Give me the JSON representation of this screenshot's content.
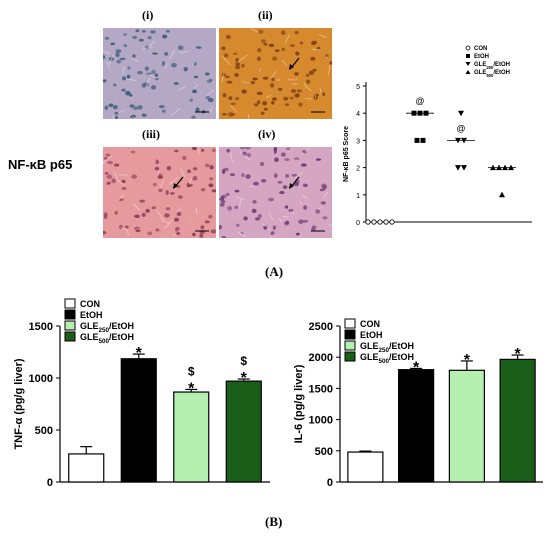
{
  "panel_a_label": "(A)",
  "panel_b_label": "(B)",
  "stain_label": "NF-κB  p65",
  "micrographs": [
    {
      "label": "(i)",
      "stain_color": "#b5a8c4",
      "nuclei_color": "#3a5a7a"
    },
    {
      "label": "(ii)",
      "stain_color": "#d7892e",
      "nuclei_color": "#7a3d10"
    },
    {
      "label": "(iii)",
      "stain_color": "#e69a9e",
      "nuclei_color": "#8a3a55"
    },
    {
      "label": "(iv)",
      "stain_color": "#d4a6c2",
      "nuclei_color": "#6a3a70"
    }
  ],
  "chart_data": [
    {
      "type": "scatter",
      "ylabel": "NF-κB p65 Score",
      "ylim": [
        0,
        5
      ],
      "yticks": [
        "0",
        "1",
        "2",
        "3",
        "4",
        "5"
      ],
      "legend_position": "top-right",
      "series": [
        {
          "name": "CON",
          "marker": "circle-open",
          "points": [
            0,
            0,
            0,
            0,
            0
          ],
          "median": null,
          "annotation": ""
        },
        {
          "name": "EtOH",
          "marker": "square",
          "points": [
            4,
            4,
            4,
            3,
            3
          ],
          "median": 4,
          "annotation": "@"
        },
        {
          "name": "GLE250/EtOH",
          "marker": "triangle-down",
          "points": [
            4,
            3,
            3,
            2,
            2
          ],
          "median": 3,
          "annotation": "@"
        },
        {
          "name": "GLE500/EtOH",
          "marker": "triangle-up",
          "points": [
            2,
            2,
            2,
            2,
            1
          ],
          "median": 2,
          "annotation": ""
        }
      ],
      "legend_labels": [
        {
          "base": "CON",
          "sub": "",
          "suffix": ""
        },
        {
          "base": "EtOH",
          "sub": "",
          "suffix": ""
        },
        {
          "base": "GLE",
          "sub": "250",
          "suffix": "/EtOH"
        },
        {
          "base": "GLE",
          "sub": "500",
          "suffix": "/EtOH"
        }
      ]
    },
    {
      "type": "bar",
      "ylabel": "TNF-α (pg/g liver)",
      "ylim": [
        0,
        1500
      ],
      "yticks": [
        "0",
        "500",
        "1000",
        "1500"
      ],
      "categories": [
        "CON",
        "EtOH",
        "GLE250/EtOH",
        "GLE500/EtOH"
      ],
      "values": [
        270,
        1185,
        865,
        970
      ],
      "errors": [
        70,
        45,
        25,
        20
      ],
      "colors": [
        "#ffffff",
        "#000000",
        "#b6f0b0",
        "#1a5e1a"
      ],
      "annotations": [
        "",
        "*",
        "$\n*",
        "$\n*"
      ],
      "legend_position": "top-left",
      "legend_labels": [
        {
          "base": "CON",
          "sub": "",
          "suffix": ""
        },
        {
          "base": "EtOH",
          "sub": "",
          "suffix": ""
        },
        {
          "base": "GLE",
          "sub": "250",
          "suffix": "/EtOH"
        },
        {
          "base": "GLE",
          "sub": "500",
          "suffix": "/EtOH"
        }
      ]
    },
    {
      "type": "bar",
      "ylabel": "IL-6 (pg/g liver)",
      "ylim": [
        0,
        2500
      ],
      "yticks": [
        "0",
        "500",
        "1000",
        "1500",
        "2000",
        "2500"
      ],
      "categories": [
        "CON",
        "EtOH",
        "GLE250/EtOH",
        "GLE500/EtOH"
      ],
      "values": [
        480,
        1800,
        1790,
        1965
      ],
      "errors": [
        15,
        20,
        150,
        70
      ],
      "colors": [
        "#ffffff",
        "#000000",
        "#b6f0b0",
        "#1a5e1a"
      ],
      "annotations": [
        "",
        "*",
        "*",
        "*"
      ],
      "legend_position": "top-left",
      "legend_labels": [
        {
          "base": "CON",
          "sub": "",
          "suffix": ""
        },
        {
          "base": "EtOH",
          "sub": "",
          "suffix": ""
        },
        {
          "base": "GLE",
          "sub": "250",
          "suffix": "/EtOH"
        },
        {
          "base": "GLE",
          "sub": "500",
          "suffix": "/EtOH"
        }
      ]
    }
  ]
}
